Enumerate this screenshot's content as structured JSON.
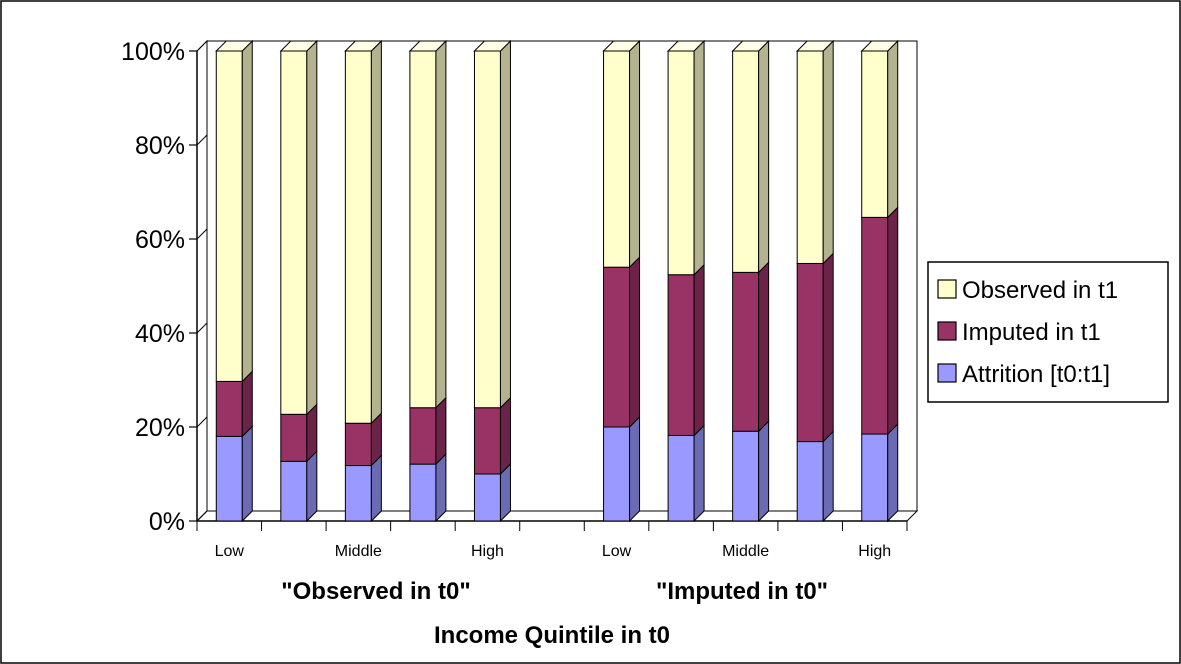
{
  "chart_data": {
    "type": "bar",
    "stacked": true,
    "three_d": true,
    "categories": [
      "Low",
      "",
      "Middle",
      "",
      "High",
      "Low",
      "",
      "Middle",
      "",
      "High"
    ],
    "groups": [
      "\"Observed in t0\"",
      "\"Imputed in t0\""
    ],
    "series": [
      {
        "name": "Attrition [t0:t1]",
        "color": "#9999ff",
        "values": [
          18,
          12.7,
          11.8,
          12.1,
          10,
          20,
          18.2,
          19.1,
          16.9,
          18.5
        ]
      },
      {
        "name": "Imputed in t1",
        "color": "#993366",
        "values": [
          11.7,
          10,
          9,
          12,
          14.1,
          34,
          34.2,
          33.8,
          37.9,
          46.1
        ]
      },
      {
        "name": "Observed in t1",
        "color": "#ffffcc",
        "values": [
          70.3,
          77.3,
          79.2,
          75.9,
          75.9,
          46,
          47.6,
          47.1,
          45.2,
          35.4
        ]
      }
    ],
    "y_ticks": [
      "0%",
      "20%",
      "40%",
      "60%",
      "80%",
      "100%"
    ],
    "ylim": [
      0,
      100
    ],
    "xlabel": "Income Quintile in t0",
    "ylabel": "",
    "legend_position": "right",
    "legend_order": [
      "Observed in t1",
      "Imputed in t1",
      "Attrition [t0:t1]"
    ],
    "grid": false
  }
}
